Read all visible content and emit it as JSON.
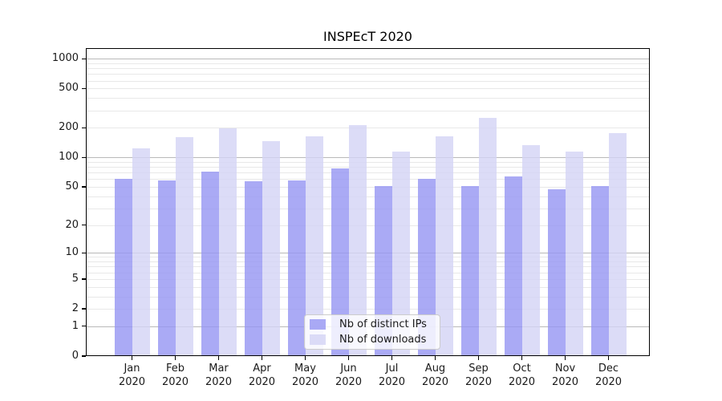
{
  "chart_data": {
    "type": "bar",
    "title": "INSPEcT 2020",
    "x_year": "2020",
    "categories": [
      "Jan",
      "Feb",
      "Mar",
      "Apr",
      "May",
      "Jun",
      "Jul",
      "Aug",
      "Sep",
      "Oct",
      "Nov",
      "Dec"
    ],
    "series": [
      {
        "name": "Nb of distinct IPs",
        "color": "#9595F3CC",
        "values": [
          60,
          58,
          71,
          57,
          58,
          78,
          51,
          61,
          51,
          64,
          47,
          51
        ]
      },
      {
        "name": "Nb of downloads",
        "color": "#D3D3F5CC",
        "values": [
          124,
          160,
          196,
          147,
          165,
          215,
          115,
          165,
          250,
          134,
          114,
          177
        ]
      }
    ],
    "y_scale": "log(1+x)",
    "ylim": [
      0,
      1280
    ],
    "y_ticks": [
      1000,
      500,
      200,
      100,
      50,
      20,
      10,
      5,
      2,
      1,
      0
    ],
    "grid": {
      "on": true,
      "major_values": [
        1,
        10,
        100,
        1000
      ],
      "minor_values": [
        2,
        3,
        4,
        5,
        6,
        7,
        8,
        9,
        20,
        30,
        40,
        50,
        60,
        70,
        80,
        90,
        200,
        300,
        400,
        500,
        600,
        700,
        800,
        900
      ],
      "major_color": "#b9b9b9",
      "minor_color": "#e8e8e8"
    },
    "legend": {
      "position": "lower center",
      "entries": [
        "Nb of distinct IPs",
        "Nb of downloads"
      ]
    },
    "colors": {
      "axis": "#000000",
      "text": "#1a1a1a",
      "background": "#ffffff",
      "legend_bg": "#FFFFFFCC",
      "legend_border": "#cccccc"
    }
  }
}
